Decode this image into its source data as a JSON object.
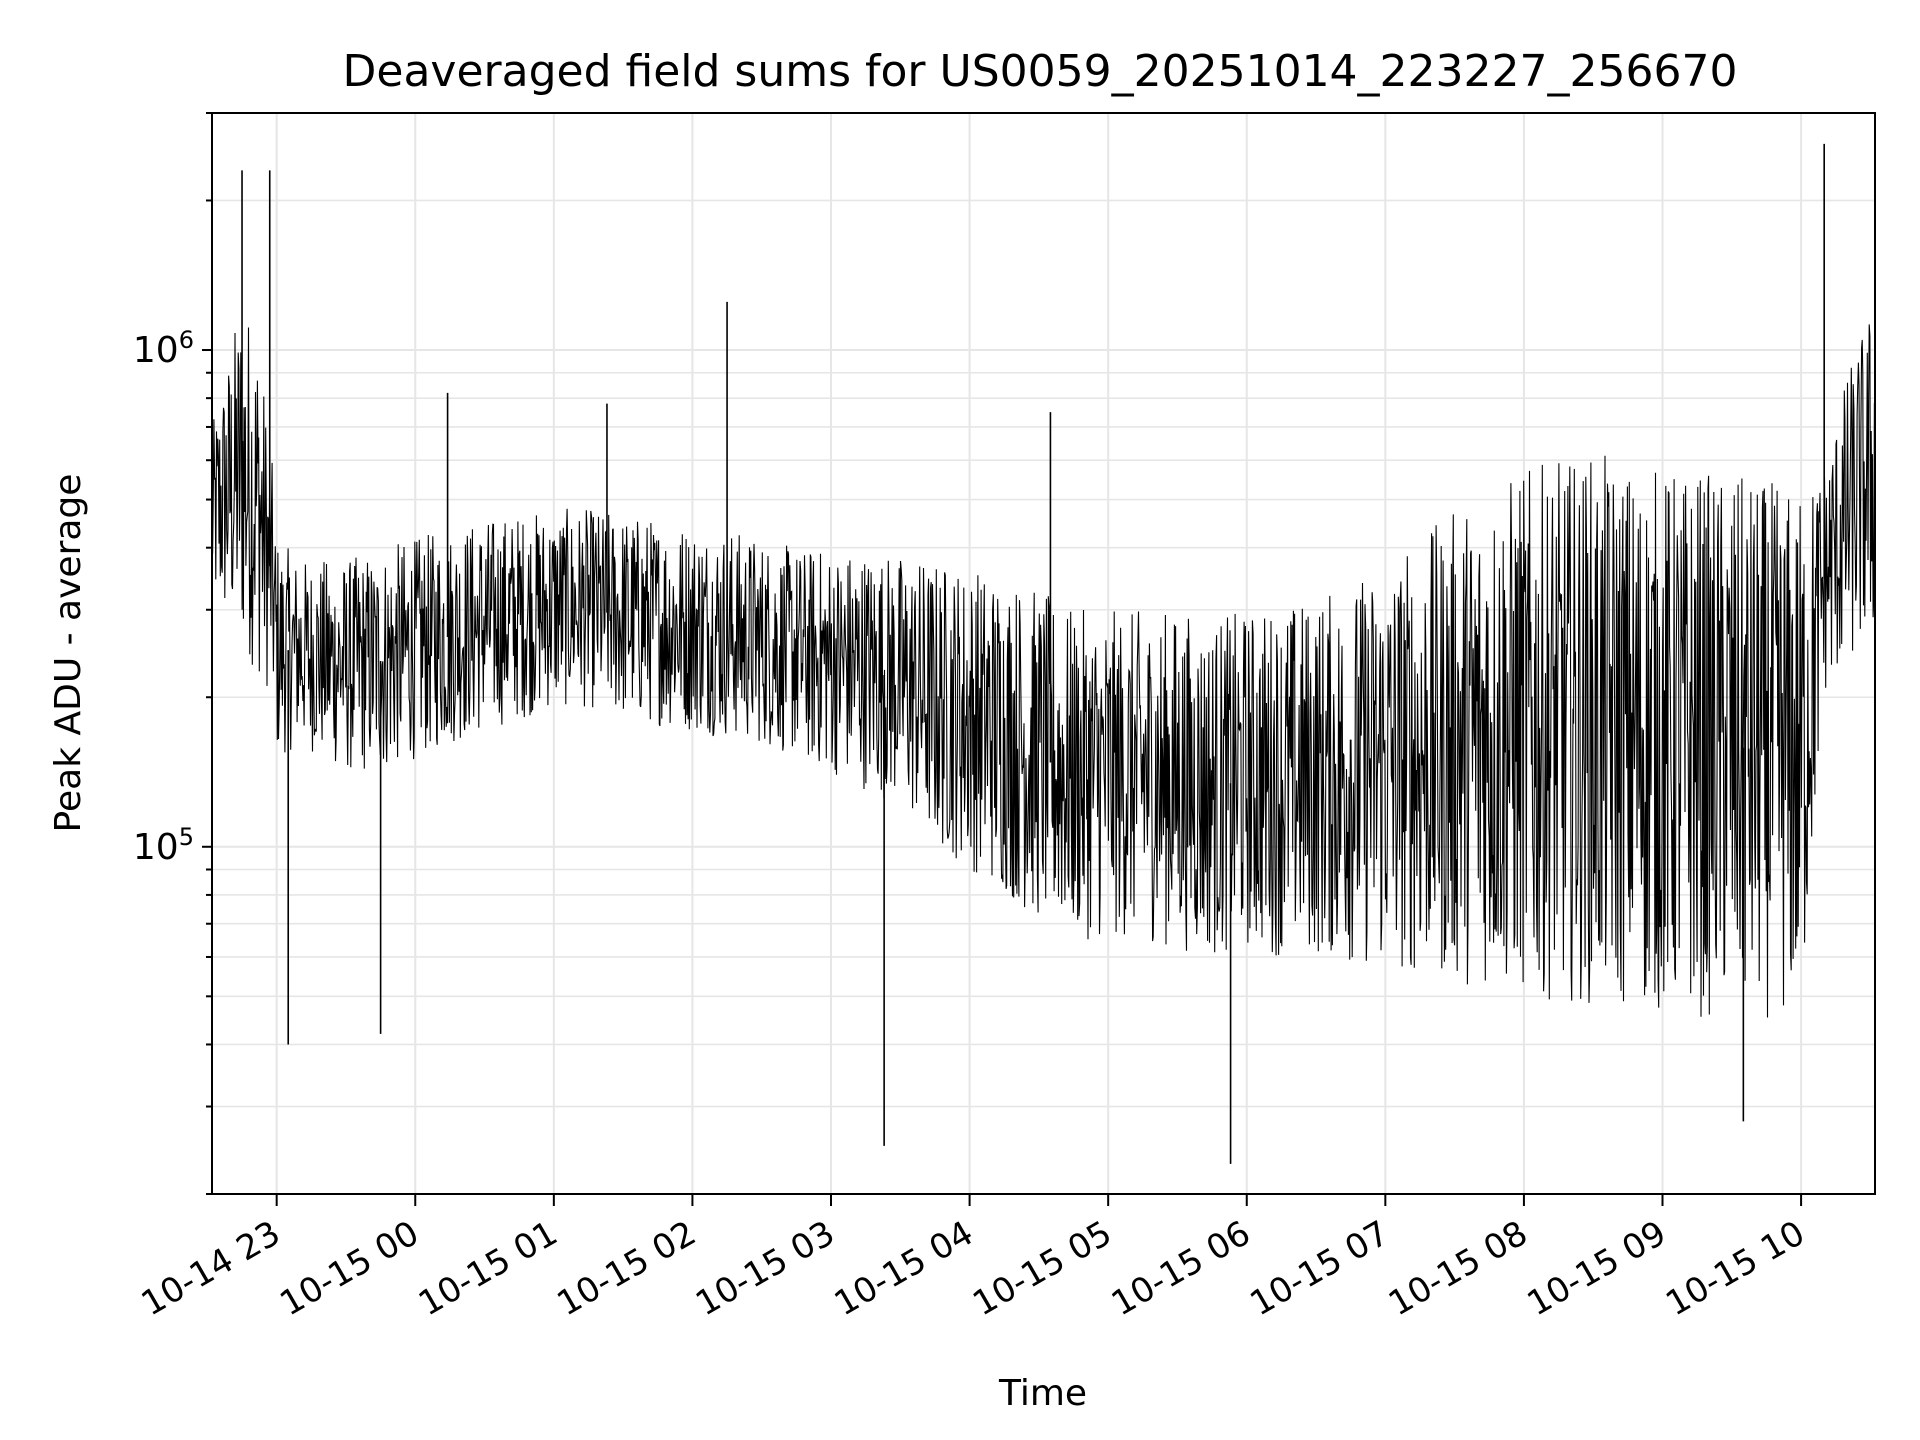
{
  "chart_data": {
    "type": "line",
    "title": "Deaveraged field sums for US0059_20251014_223227_256670",
    "xlabel": "Time",
    "ylabel": "Peak ADU - average",
    "y_scale": "log",
    "ylim": [
      20000,
      3000000
    ],
    "xlim": [
      "2025-10-14 22:32",
      "2025-10-15 10:32"
    ],
    "x_ticks": [
      {
        "label": "10-14 23",
        "value": "2025-10-14 23:00"
      },
      {
        "label": "10-15 00",
        "value": "2025-10-15 00:00"
      },
      {
        "label": "10-15 01",
        "value": "2025-10-15 01:00"
      },
      {
        "label": "10-15 02",
        "value": "2025-10-15 02:00"
      },
      {
        "label": "10-15 03",
        "value": "2025-10-15 03:00"
      },
      {
        "label": "10-15 04",
        "value": "2025-10-15 04:00"
      },
      {
        "label": "10-15 05",
        "value": "2025-10-15 05:00"
      },
      {
        "label": "10-15 06",
        "value": "2025-10-15 06:00"
      },
      {
        "label": "10-15 07",
        "value": "2025-10-15 07:00"
      },
      {
        "label": "10-15 08",
        "value": "2025-10-15 08:00"
      },
      {
        "label": "10-15 09",
        "value": "2025-10-15 09:00"
      },
      {
        "label": "10-15 10",
        "value": "2025-10-15 10:00"
      }
    ],
    "y_ticks": [
      {
        "base": "10",
        "exponent": "5",
        "value": 100000
      },
      {
        "base": "10",
        "exponent": "6",
        "value": 1000000
      }
    ],
    "grid": true,
    "legend": false,
    "line_color": "#000000",
    "grid_color": "#e6e6e6",
    "series": [
      {
        "x": [
          "2025-10-14 22:32",
          "2025-10-14 22:45",
          "2025-10-14 22:52",
          "2025-10-14 22:58",
          "2025-10-14 23:00",
          "2025-10-14 23:10",
          "2025-10-14 23:20",
          "2025-10-14 23:30",
          "2025-10-14 23:45",
          "2025-10-15 00:00",
          "2025-10-15 00:15",
          "2025-10-15 00:30",
          "2025-10-15 00:45",
          "2025-10-15 01:00",
          "2025-10-15 01:15",
          "2025-10-15 01:30",
          "2025-10-15 01:45",
          "2025-10-15 02:00",
          "2025-10-15 02:15",
          "2025-10-15 02:30",
          "2025-10-15 02:45",
          "2025-10-15 03:00",
          "2025-10-15 03:15",
          "2025-10-15 03:30",
          "2025-10-15 03:45",
          "2025-10-15 04:00",
          "2025-10-15 04:15",
          "2025-10-15 04:30",
          "2025-10-15 04:45",
          "2025-10-15 05:00",
          "2025-10-15 05:15",
          "2025-10-15 05:30",
          "2025-10-15 05:45",
          "2025-10-15 06:00",
          "2025-10-15 06:15",
          "2025-10-15 06:30",
          "2025-10-15 06:45",
          "2025-10-15 07:00",
          "2025-10-15 07:15",
          "2025-10-15 07:30",
          "2025-10-15 07:45",
          "2025-10-15 08:00",
          "2025-10-15 08:15",
          "2025-10-15 08:30",
          "2025-10-15 08:45",
          "2025-10-15 09:00",
          "2025-10-15 09:15",
          "2025-10-15 09:30",
          "2025-10-15 09:45",
          "2025-10-15 10:00",
          "2025-10-15 10:10",
          "2025-10-15 10:20",
          "2025-10-15 10:32"
        ],
        "y_low": [
          300000,
          250000,
          220000,
          200000,
          150000,
          160000,
          150000,
          140000,
          140000,
          150000,
          160000,
          170000,
          180000,
          190000,
          190000,
          180000,
          175000,
          170000,
          165000,
          160000,
          150000,
          140000,
          130000,
          120000,
          100000,
          90000,
          80000,
          70000,
          65000,
          65000,
          65000,
          62000,
          60000,
          62000,
          60000,
          60000,
          58000,
          56000,
          55000,
          53000,
          52000,
          50000,
          49000,
          48000,
          47000,
          46000,
          45000,
          45000,
          45000,
          45000,
          200000,
          230000,
          260000
        ],
        "y_high": [
          700000,
          1300000,
          1100000,
          600000,
          420000,
          380000,
          380000,
          380000,
          400000,
          420000,
          440000,
          460000,
          470000,
          480000,
          480000,
          470000,
          460000,
          450000,
          440000,
          420000,
          400000,
          400000,
          400000,
          390000,
          380000,
          370000,
          360000,
          330000,
          300000,
          300000,
          300000,
          300000,
          290000,
          300000,
          310000,
          320000,
          340000,
          380000,
          420000,
          480000,
          540000,
          580000,
          600000,
          620000,
          600000,
          580000,
          580000,
          560000,
          550000,
          520000,
          600000,
          900000,
          1300000
        ],
        "spikes_up": [
          {
            "x": "2025-10-14 22:45",
            "y": 2300000
          },
          {
            "x": "2025-10-14 22:57",
            "y": 2300000
          },
          {
            "x": "2025-10-15 00:14",
            "y": 820000
          },
          {
            "x": "2025-10-15 01:23",
            "y": 780000
          },
          {
            "x": "2025-10-15 02:15",
            "y": 1250000
          },
          {
            "x": "2025-10-15 04:35",
            "y": 750000
          },
          {
            "x": "2025-10-15 10:10",
            "y": 2600000
          }
        ],
        "spikes_down": [
          {
            "x": "2025-10-14 23:05",
            "y": 40000
          },
          {
            "x": "2025-10-14 23:45",
            "y": 42000
          },
          {
            "x": "2025-10-15 03:23",
            "y": 25000
          },
          {
            "x": "2025-10-15 05:53",
            "y": 23000
          },
          {
            "x": "2025-10-15 09:35",
            "y": 28000
          }
        ]
      }
    ]
  }
}
